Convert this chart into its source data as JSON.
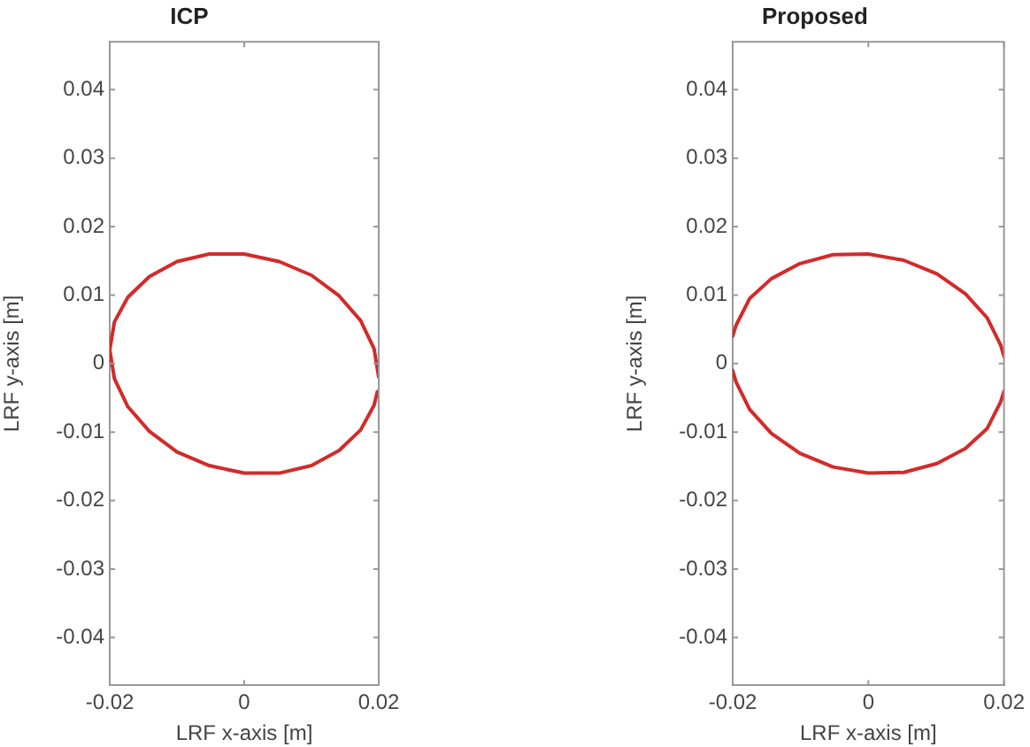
{
  "chart_data": [
    {
      "type": "line",
      "title": "ICP",
      "xlabel": "LRF x-axis [m]",
      "ylabel": "LRF y-axis [m]",
      "xlim": [
        -0.02,
        0.02
      ],
      "ylim": [
        -0.047,
        0.047
      ],
      "xticks": [
        -0.02,
        0,
        0.02
      ],
      "yticks": [
        -0.04,
        -0.03,
        -0.02,
        -0.01,
        0,
        0.01,
        0.02,
        0.03,
        0.04
      ],
      "grid": false,
      "legend": false,
      "marker": "none",
      "line_style": "solid",
      "series": [
        {
          "color": "#d42a2a",
          "x": [
            0.02,
            0.0193,
            0.0173,
            0.0141,
            0.01,
            0.0052,
            0,
            -0.0052,
            -0.01,
            -0.0141,
            -0.0173,
            -0.0193,
            -0.02,
            -0.0193,
            -0.0173,
            -0.0141,
            -0.01,
            -0.0052,
            0,
            0.0052,
            0.01,
            0.0141,
            0.0173,
            0.0193,
            0.0198
          ],
          "values": [
            -0.002,
            0.0022,
            0.0063,
            0.0099,
            0.0129,
            0.0149,
            0.016,
            0.016,
            0.0149,
            0.0127,
            0.0097,
            0.0061,
            0.002,
            -0.0022,
            -0.0063,
            -0.0099,
            -0.0129,
            -0.0149,
            -0.016,
            -0.016,
            -0.0149,
            -0.0127,
            -0.0097,
            -0.0061,
            -0.0041
          ]
        }
      ]
    },
    {
      "type": "line",
      "title": "Proposed",
      "xlabel": "LRF x-axis [m]",
      "ylabel": "LRF y-axis [m]",
      "xlim": [
        -0.02,
        0.02
      ],
      "ylim": [
        -0.047,
        0.047
      ],
      "xticks": [
        -0.02,
        0,
        0.02
      ],
      "yticks": [
        -0.04,
        -0.03,
        -0.02,
        -0.01,
        0,
        0.01,
        0.02,
        0.03,
        0.04
      ],
      "grid": false,
      "legend": false,
      "marker": "none",
      "line_style": "solid",
      "series": [
        {
          "color": "#d42a2a",
          "x": [
            -0.02,
            -0.0195,
            -0.0175,
            -0.0143,
            -0.0101,
            -0.0052,
            0,
            0.0052,
            0.0101,
            0.0143,
            0.0175,
            0.0195,
            0.02
          ],
          "values": [
            0.004,
            0.0056,
            0.0095,
            0.0124,
            0.0146,
            0.0159,
            0.016,
            0.0151,
            0.0131,
            0.0102,
            0.0067,
            0.0027,
            0.001
          ]
        },
        {
          "color": "#d42a2a",
          "x": [
            -0.02,
            -0.0195,
            -0.0175,
            -0.0143,
            -0.0101,
            -0.0052,
            0,
            0.0052,
            0.0101,
            0.0143,
            0.0175,
            0.0195,
            0.02
          ],
          "values": [
            -0.001,
            -0.0027,
            -0.0067,
            -0.0102,
            -0.0131,
            -0.0151,
            -0.016,
            -0.0159,
            -0.0146,
            -0.0124,
            -0.0095,
            -0.0056,
            -0.004
          ]
        }
      ]
    }
  ]
}
